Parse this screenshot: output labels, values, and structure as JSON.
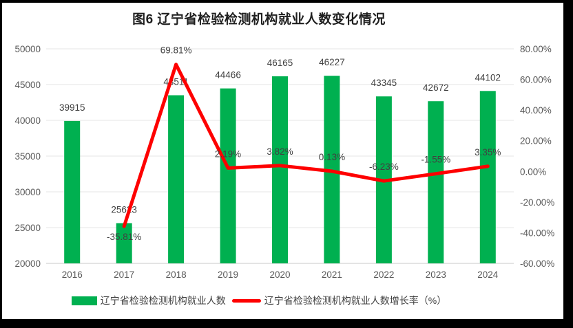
{
  "chart_data": {
    "type": "bar-line-combo",
    "title": "图6  辽宁省检验检测机构就业人数变化情况",
    "categories": [
      "2016",
      "2017",
      "2018",
      "2019",
      "2020",
      "2021",
      "2022",
      "2023",
      "2024"
    ],
    "series": [
      {
        "name": "辽宁省检验检测机构就业人数",
        "type": "bar",
        "axis": "left",
        "color": "#00B050",
        "values": [
          39915,
          25623,
          43511,
          44466,
          46165,
          46227,
          43345,
          42672,
          44102
        ],
        "labels": [
          "39915",
          "25623",
          "43511",
          "44466",
          "46165",
          "46227",
          "43345",
          "42672",
          "44102"
        ]
      },
      {
        "name": "辽宁省检验检测机构就业人数增长率（%）",
        "type": "line",
        "axis": "right",
        "color": "#FE0000",
        "values": [
          null,
          -35.81,
          69.81,
          2.19,
          3.82,
          0.13,
          -6.23,
          -1.55,
          3.35
        ],
        "labels": [
          "",
          "-35.81%",
          "69.81%",
          "2.19%",
          "3.82%",
          "0.13%",
          "-6.23%",
          "-1.55%",
          "3.35%"
        ],
        "labels_below_point_indexes": [
          1
        ]
      }
    ],
    "left_axis": {
      "min": 20000,
      "max": 50000,
      "step": 5000,
      "ticks": [
        "50000",
        "45000",
        "40000",
        "35000",
        "30000",
        "25000",
        "20000"
      ]
    },
    "right_axis": {
      "min": -60,
      "max": 80,
      "step": 20,
      "ticks": [
        "80.00%",
        "60.00%",
        "40.00%",
        "20.00%",
        "0.00%",
        "-20.00%",
        "-40.00%",
        "-60.00%"
      ]
    },
    "grid": true,
    "legend_position": "bottom"
  },
  "colors": {
    "bar": "#00B050",
    "line": "#FE0000",
    "gridline": "#E4E4E4",
    "axis_line": "#C9C9C9",
    "tick_text": "#595959",
    "data_label_text": "#404040",
    "frame_border": "#000000",
    "background": "#FFFFFF"
  }
}
